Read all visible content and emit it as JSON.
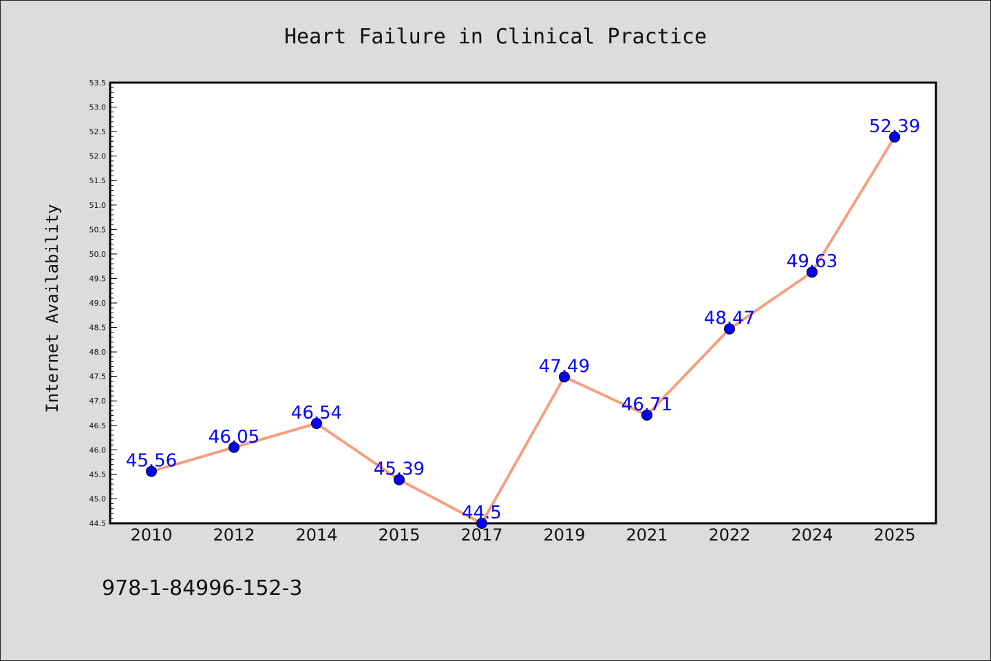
{
  "chart_data": {
    "type": "line",
    "title": "Heart Failure in Clinical Practice",
    "xlabel": "",
    "ylabel": "Internet Availability",
    "categories": [
      "2010",
      "2012",
      "2014",
      "2015",
      "2017",
      "2019",
      "2021",
      "2022",
      "2024",
      "2025"
    ],
    "values": [
      45.56,
      46.05,
      46.54,
      45.39,
      44.5,
      47.49,
      46.71,
      48.47,
      49.63,
      52.39
    ],
    "data_labels": [
      "45.56",
      "46.05",
      "46.54",
      "45.39",
      "44.5",
      "47.49",
      "46.71",
      "48.47",
      "49.63",
      "52.39"
    ],
    "ylim": [
      44.5,
      53.5
    ],
    "yticks": [
      "44.5",
      "45.0",
      "45.5",
      "46.0",
      "46.5",
      "47.0",
      "47.5",
      "48.0",
      "48.5",
      "49.0",
      "49.5",
      "50.0",
      "50.5",
      "51.0",
      "51.5",
      "52.0",
      "52.5",
      "53.0",
      "53.5"
    ],
    "grid": false,
    "legend": "none",
    "line_color": "#f4a07e",
    "marker_color": "#0000ff",
    "label_color": "#0000ff",
    "plot_background": "#ffffff",
    "figure_background": "#dcdcdc"
  },
  "footer_text": "978-1-84996-152-3"
}
